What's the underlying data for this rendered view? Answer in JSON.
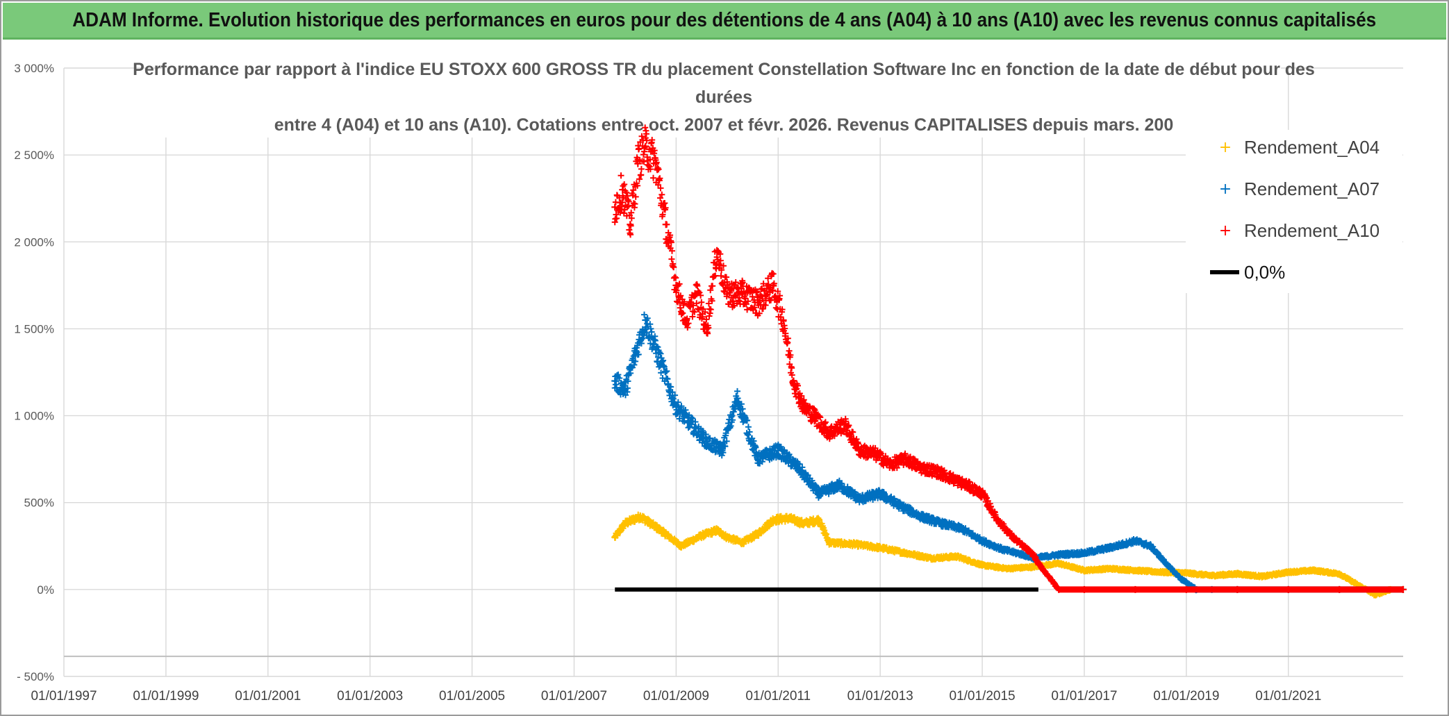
{
  "header": {
    "banner_title": "ADAM Informe. Evolution historique des performances en euros pour des détentions de 4 ans (A04) à 10 ans (A10) avec les revenus connus capitalisés"
  },
  "colors": {
    "banner_bg": "#7ac97a",
    "A04": "#ffc000",
    "A07": "#0070c0",
    "A10": "#ff0000",
    "zero_line": "#000000"
  },
  "chart_data": {
    "type": "scatter",
    "title_lines": [
      "Performance par rapport à l'indice EU STOXX 600 GROSS TR  du placement Constellation Software Inc en fonction de la date de début pour des",
      "durées",
      "entre 4 (A04) et 10 ans (A10). Cotations entre oct. 2007 et févr. 2026. Revenus CAPITALISES depuis mars. 200"
    ],
    "x_axis": {
      "unit": "year",
      "range": [
        1997.0,
        2023.25
      ],
      "tick_labels": [
        "01/01/1997",
        "01/01/1999",
        "01/01/2001",
        "01/01/2003",
        "01/01/2005",
        "01/01/2007",
        "01/01/2009",
        "01/01/2011",
        "01/01/2013",
        "01/01/2015",
        "01/01/2017",
        "01/01/2019",
        "01/01/2021"
      ],
      "tick_values": [
        1997,
        1999,
        2001,
        2003,
        2005,
        2007,
        2009,
        2011,
        2013,
        2015,
        2017,
        2019,
        2021
      ]
    },
    "y_axis": {
      "unit": "%",
      "range": [
        -500,
        3000
      ],
      "tick_labels": [
        "- 500%",
        "0%",
        "500%",
        "1 000%",
        "1 500%",
        "2 000%",
        "2 500%",
        "3 000%"
      ],
      "tick_values": [
        -500,
        0,
        500,
        1000,
        1500,
        2000,
        2500,
        3000
      ]
    },
    "legend_position": "top-right",
    "series": [
      {
        "name": "Rendement_A04",
        "marker": "plus",
        "color": "#ffc000",
        "x": [
          2007.8,
          2008.0,
          2008.3,
          2008.7,
          2009.1,
          2009.5,
          2009.8,
          2010.0,
          2010.3,
          2010.6,
          2010.9,
          2011.2,
          2011.5,
          2011.8,
          2012.0,
          2012.5,
          2013.0,
          2013.5,
          2014.0,
          2014.5,
          2015.0,
          2015.5,
          2016.0,
          2016.5,
          2017.0,
          2017.5,
          2018.0,
          2018.5,
          2019.0,
          2019.5,
          2020.0,
          2020.5,
          2021.0,
          2021.5,
          2022.0,
          2022.4,
          2022.7,
          2023.0,
          2023.25
        ],
        "y": [
          300,
          380,
          420,
          340,
          250,
          310,
          340,
          300,
          270,
          320,
          400,
          410,
          380,
          400,
          270,
          260,
          240,
          210,
          180,
          190,
          140,
          120,
          130,
          150,
          110,
          120,
          110,
          100,
          95,
          80,
          90,
          75,
          100,
          110,
          90,
          20,
          -30,
          0,
          0
        ]
      },
      {
        "name": "Rendement_A07",
        "marker": "plus",
        "color": "#0070c0",
        "x": [
          2007.8,
          2008.0,
          2008.2,
          2008.4,
          2008.7,
          2009.0,
          2009.3,
          2009.6,
          2009.9,
          2010.2,
          2010.6,
          2011.0,
          2011.4,
          2011.8,
          2012.2,
          2012.6,
          2013.0,
          2013.4,
          2013.8,
          2014.2,
          2014.6,
          2015.0,
          2015.4,
          2015.8,
          2016.0,
          2016.5,
          2017.0,
          2017.5,
          2018.0,
          2018.3,
          2018.6,
          2018.9,
          2019.2,
          2019.5,
          2020.0,
          2021.0,
          2022.0,
          2023.25
        ],
        "y": [
          1200,
          1150,
          1350,
          1550,
          1300,
          1050,
          950,
          850,
          800,
          1100,
          750,
          800,
          700,
          550,
          600,
          520,
          550,
          480,
          420,
          380,
          350,
          280,
          230,
          200,
          180,
          200,
          210,
          240,
          280,
          250,
          150,
          60,
          0,
          0,
          0,
          0,
          0,
          0
        ]
      },
      {
        "name": "Rendement_A10",
        "marker": "plus",
        "color": "#ff0000",
        "x": [
          2007.8,
          2007.95,
          2008.1,
          2008.25,
          2008.4,
          2008.6,
          2008.8,
          2009.0,
          2009.2,
          2009.4,
          2009.6,
          2009.8,
          2010.0,
          2010.3,
          2010.6,
          2010.9,
          2011.1,
          2011.3,
          2011.5,
          2011.7,
          2012.0,
          2012.3,
          2012.6,
          2012.9,
          2013.2,
          2013.5,
          2013.8,
          2014.1,
          2014.4,
          2014.7,
          2015.0,
          2015.3,
          2015.6,
          2015.8,
          2016.0,
          2016.1,
          2016.5,
          2017.0,
          2018.0,
          2019.0,
          2020.0,
          2021.0,
          2022.0,
          2023.25
        ],
        "y": [
          2200,
          2300,
          2100,
          2450,
          2550,
          2450,
          2100,
          1750,
          1550,
          1700,
          1500,
          1950,
          1700,
          1700,
          1650,
          1750,
          1550,
          1200,
          1050,
          1000,
          900,
          950,
          800,
          780,
          720,
          750,
          700,
          680,
          640,
          600,
          550,
          400,
          300,
          250,
          200,
          150,
          0,
          0,
          0,
          0,
          0,
          0,
          0,
          0
        ]
      },
      {
        "name": "0,0%",
        "marker": "line",
        "color": "#000000",
        "x": [
          2007.8,
          2016.1
        ],
        "y": [
          0,
          0
        ]
      }
    ]
  }
}
